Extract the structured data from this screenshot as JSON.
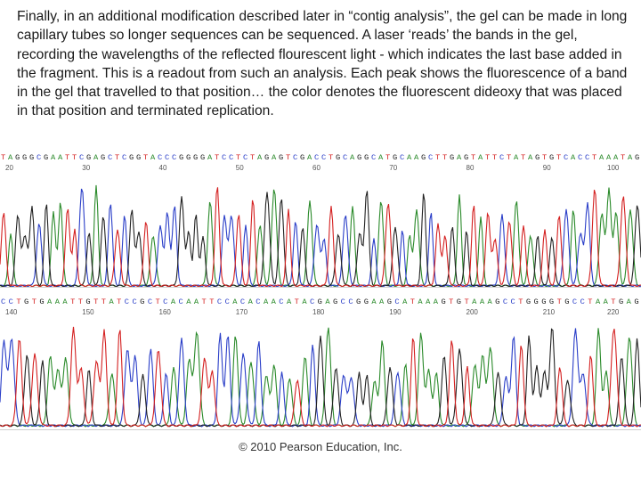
{
  "slide": {
    "caption": "Finally, in an additional modification described later in “contig analysis”, the gel can be made in long capillary tubes so longer sequences can be sequenced. A laser ‘reads’ the bands in the gel, recording the wavelengths of the reflected flourescent light  - which indicates the last base added in the fragment.  This is a readout from such an analysis.  Each peak shows the fluorescence of a band in the gel that travelled to that position… the color denotes the fluorescent dideoxy that was placed in that position and terminated replication.",
    "footer": "© 2010 Pearson Education, Inc."
  },
  "colors": {
    "A": "#2a8a2a",
    "C": "#2a3ec8",
    "G": "#222222",
    "T": "#d42020"
  },
  "chromatogram": {
    "panels": [
      {
        "sequence": "TAGGGCGAATTCGAGCTCGGTACCCGGGGATCCTCTAGAGTCGACCTGCAGGCATGCAAGCTTGAGTATTCTATAGTGTCACCTAAATAG",
        "positions": [
          "20",
          "30",
          "40",
          "50",
          "60",
          "70",
          "80",
          "90",
          "100"
        ]
      },
      {
        "sequence": "CCTGTGAAATTGTTATCCGCTCACAATTCCACACAACATACGAGCCGGAAGCATAAAGTGTAAAGCCTGGGGTGCCTAATGAG",
        "positions": [
          "140",
          "150",
          "160",
          "170",
          "180",
          "190",
          "200",
          "210",
          "220"
        ]
      }
    ]
  }
}
